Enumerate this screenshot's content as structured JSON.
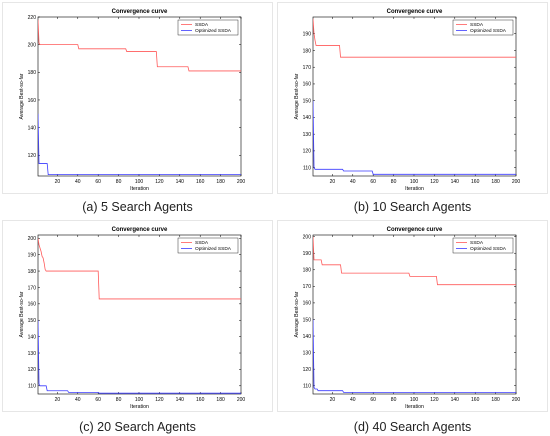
{
  "chart_data": [
    {
      "type": "line",
      "title": "Convergence curve",
      "xlabel": "Iteration",
      "ylabel": "Average Best-so-far",
      "xlim": [
        1,
        200
      ],
      "ylim": [
        105,
        220
      ],
      "xticks": [
        20,
        40,
        60,
        80,
        100,
        120,
        140,
        160,
        180,
        200
      ],
      "yticks": [
        120,
        140,
        160,
        180,
        200,
        220
      ],
      "legend_position": "top-right",
      "caption": "(a) 5 Search Agents",
      "series": [
        {
          "name": "SSDA",
          "color": "#ff5a5a",
          "x": [
            1,
            2,
            3,
            40,
            41,
            87,
            88,
            117,
            118,
            148,
            149,
            200
          ],
          "y": [
            218,
            201,
            200,
            200,
            197,
            197,
            195,
            195,
            184,
            184,
            181,
            181
          ]
        },
        {
          "name": "Optimized SSDA",
          "color": "#3b3bff",
          "x": [
            1,
            2,
            3,
            10,
            11,
            200
          ],
          "y": [
            150,
            114,
            114,
            114,
            106,
            106
          ]
        }
      ]
    },
    {
      "type": "line",
      "title": "Convergence curve",
      "xlabel": "Iteration",
      "ylabel": "Average Best-so-far",
      "xlim": [
        1,
        200
      ],
      "ylim": [
        105,
        200
      ],
      "xticks": [
        20,
        40,
        60,
        80,
        100,
        120,
        140,
        160,
        180,
        200
      ],
      "yticks": [
        110,
        120,
        130,
        140,
        150,
        160,
        170,
        180,
        190
      ],
      "legend_position": "top-right",
      "caption": "(b) 10 Search Agents",
      "series": [
        {
          "name": "SSDA",
          "color": "#ff5a5a",
          "x": [
            1,
            2,
            3,
            4,
            5,
            27,
            28,
            200
          ],
          "y": [
            199,
            190,
            186,
            183,
            183,
            183,
            176,
            176
          ]
        },
        {
          "name": "Optimized SSDA",
          "color": "#3b3bff",
          "x": [
            1,
            2,
            3,
            30,
            31,
            59,
            60,
            200
          ],
          "y": [
            150,
            110,
            109,
            109,
            108,
            108,
            106,
            106
          ]
        }
      ]
    },
    {
      "type": "line",
      "title": "Convergence curve",
      "xlabel": "Iteration",
      "ylabel": "Average Best-so-far",
      "xlim": [
        1,
        200
      ],
      "ylim": [
        105,
        202
      ],
      "xticks": [
        20,
        40,
        60,
        80,
        100,
        120,
        140,
        160,
        180,
        200
      ],
      "yticks": [
        110,
        120,
        130,
        140,
        150,
        160,
        170,
        180,
        190,
        200
      ],
      "legend_position": "top-right",
      "caption": "(c) 20 Search Agents",
      "series": [
        {
          "name": "SSDA",
          "color": "#ff5a5a",
          "x": [
            1,
            2,
            3,
            4,
            5,
            6,
            7,
            8,
            9,
            60,
            61,
            200
          ],
          "y": [
            200,
            196,
            194,
            192,
            189,
            188,
            185,
            181,
            180,
            180,
            163,
            163
          ]
        },
        {
          "name": "Optimized SSDA",
          "color": "#3b3bff",
          "x": [
            1,
            2,
            3,
            9,
            10,
            30,
            31,
            60,
            61,
            200
          ],
          "y": [
            150,
            111,
            110,
            110,
            107,
            107,
            106,
            106,
            105.5,
            105.5
          ]
        }
      ]
    },
    {
      "type": "line",
      "title": "Convergence curve",
      "xlabel": "Iteration",
      "ylabel": "Average Best-so-far",
      "xlim": [
        1,
        200
      ],
      "ylim": [
        105,
        201
      ],
      "xticks": [
        20,
        40,
        60,
        80,
        100,
        120,
        140,
        160,
        180,
        200
      ],
      "yticks": [
        110,
        120,
        130,
        140,
        150,
        160,
        170,
        180,
        190,
        200
      ],
      "legend_position": "top-right",
      "caption": "(d) 40 Search Agents",
      "series": [
        {
          "name": "SSDA",
          "color": "#ff5a5a",
          "x": [
            1,
            2,
            3,
            9,
            10,
            28,
            29,
            95,
            96,
            122,
            123,
            200
          ],
          "y": [
            200,
            186,
            186,
            186,
            183,
            183,
            178,
            178,
            176,
            176,
            171,
            171
          ]
        },
        {
          "name": "Optimized SSDA",
          "color": "#3b3bff",
          "x": [
            1,
            2,
            3,
            5,
            6,
            30,
            31,
            200
          ],
          "y": [
            150,
            109,
            108,
            108,
            107,
            107,
            106,
            106
          ]
        }
      ]
    }
  ]
}
